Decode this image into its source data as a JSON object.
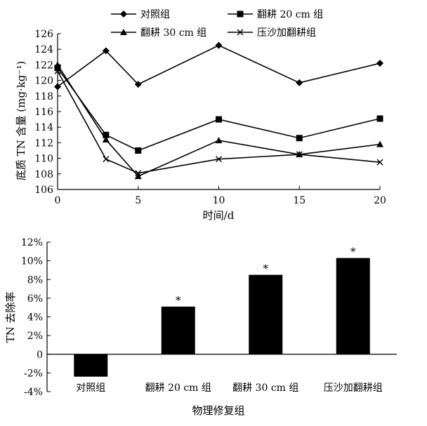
{
  "chart_data": [
    {
      "type": "line",
      "xlabel": "时间/d",
      "ylabel": "底质 TN 含量 (mg·kg⁻¹)",
      "xlim": [
        0,
        20
      ],
      "ylim": [
        106,
        126
      ],
      "x_ticks": [
        0,
        5,
        10,
        15,
        20
      ],
      "y_ticks": [
        106,
        108,
        110,
        112,
        114,
        116,
        118,
        120,
        122,
        124,
        126
      ],
      "x": [
        0,
        3,
        5,
        10,
        15,
        20
      ],
      "series": [
        {
          "name": "对照组",
          "marker": "diamond",
          "values": [
            119.2,
            123.8,
            119.5,
            124.5,
            119.7,
            122.2
          ]
        },
        {
          "name": "翻耕 20 cm 组",
          "marker": "square",
          "values": [
            121.6,
            113.0,
            111.0,
            115.0,
            112.6,
            115.1
          ]
        },
        {
          "name": "翻耕 30 cm 组",
          "marker": "triangle",
          "values": [
            122.0,
            112.4,
            107.7,
            112.3,
            110.5,
            111.8
          ]
        },
        {
          "name": "压沙加翻耕组",
          "marker": "cross",
          "values": [
            121.2,
            109.9,
            108.1,
            109.9,
            110.5,
            109.5
          ]
        }
      ]
    },
    {
      "type": "bar",
      "xlabel": "物理修复组",
      "ylabel": "TN 去除率",
      "ylim": [
        -4,
        12
      ],
      "y_ticks": [
        "-4%",
        "-2%",
        "0",
        "2%",
        "4%",
        "6%",
        "8%",
        "10%",
        "12%"
      ],
      "y_tick_values": [
        -4,
        -2,
        0,
        2,
        4,
        6,
        8,
        10,
        12
      ],
      "categories": [
        "对照组",
        "翻耕 20 cm 组",
        "翻耕 30 cm 组",
        "压沙加翻耕组"
      ],
      "values": [
        -2.4,
        5.1,
        8.5,
        10.3
      ],
      "annotations": [
        "",
        "*",
        "*",
        "*"
      ]
    }
  ]
}
